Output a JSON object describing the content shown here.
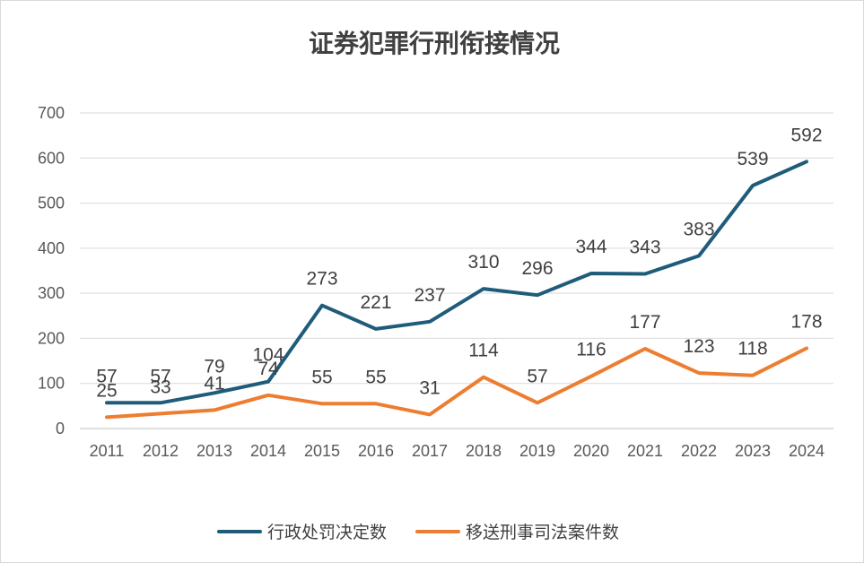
{
  "chart_data": {
    "type": "line",
    "title": "证券犯罪行刑衔接情况",
    "xlabel": "",
    "ylabel": "",
    "categories": [
      "2011",
      "2012",
      "2013",
      "2014",
      "2015",
      "2016",
      "2017",
      "2018",
      "2019",
      "2020",
      "2021",
      "2022",
      "2023",
      "2024"
    ],
    "ylim": [
      0,
      700
    ],
    "yticks": [
      0,
      100,
      200,
      300,
      400,
      500,
      600,
      700
    ],
    "grid": true,
    "legend_position": "bottom",
    "series": [
      {
        "name": "行政处罚决定数",
        "color": "#1f5c7a",
        "values": [
          57,
          57,
          79,
          104,
          273,
          221,
          237,
          310,
          296,
          344,
          343,
          383,
          539,
          592
        ]
      },
      {
        "name": "移送刑事司法案件数",
        "color": "#ed7d31",
        "values": [
          25,
          33,
          41,
          74,
          55,
          55,
          31,
          114,
          57,
          116,
          177,
          123,
          118,
          178
        ]
      }
    ]
  }
}
